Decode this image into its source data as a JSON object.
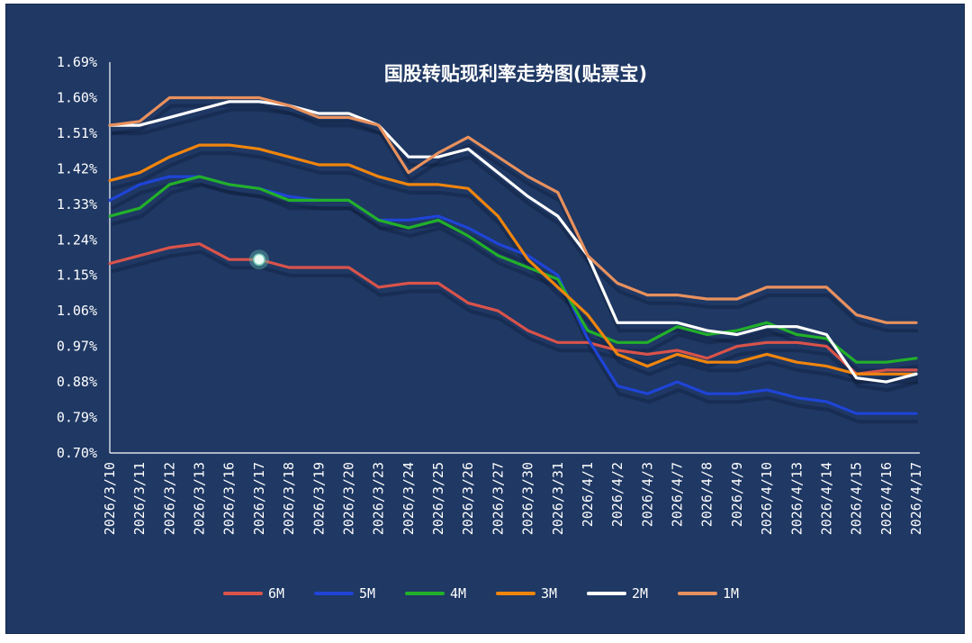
{
  "chart_data": {
    "type": "line",
    "title": "国股转贴现利率走势图(贴票宝)",
    "xlabel": "",
    "ylabel": "",
    "ylim": [
      0.7,
      1.69
    ],
    "yticks": [
      "0.70%",
      "0.79%",
      "0.88%",
      "0.97%",
      "1.06%",
      "1.15%",
      "1.24%",
      "1.33%",
      "1.42%",
      "1.51%",
      "1.60%",
      "1.69%"
    ],
    "ytick_values": [
      0.7,
      0.79,
      0.88,
      0.97,
      1.06,
      1.15,
      1.24,
      1.33,
      1.42,
      1.51,
      1.6,
      1.69
    ],
    "categories": [
      "2026/3/10",
      "2026/3/11",
      "2026/3/12",
      "2026/3/13",
      "2026/3/16",
      "2026/3/17",
      "2026/3/18",
      "2026/3/19",
      "2026/3/20",
      "2026/3/23",
      "2026/3/24",
      "2026/3/25",
      "2026/3/26",
      "2026/3/27",
      "2026/3/30",
      "2026/3/31",
      "2026/4/1",
      "2026/4/2",
      "2026/4/3",
      "2026/4/7",
      "2026/4/8",
      "2026/4/9",
      "2026/4/10",
      "2026/4/13",
      "2026/4/14",
      "2026/4/15",
      "2026/4/16",
      "2026/4/17"
    ],
    "legend_position": "bottom",
    "series": [
      {
        "name": "6M",
        "color": "#d9534a",
        "values": [
          1.18,
          1.2,
          1.22,
          1.23,
          1.19,
          1.19,
          1.17,
          1.17,
          1.17,
          1.12,
          1.13,
          1.13,
          1.08,
          1.06,
          1.01,
          0.98,
          0.98,
          0.96,
          0.95,
          0.96,
          0.94,
          0.97,
          0.98,
          0.98,
          0.97,
          0.9,
          0.91,
          0.91
        ]
      },
      {
        "name": "5M",
        "color": "#1f44d6",
        "values": [
          1.34,
          1.38,
          1.4,
          1.4,
          1.38,
          1.37,
          1.35,
          1.34,
          1.34,
          1.29,
          1.29,
          1.3,
          1.27,
          1.23,
          1.2,
          1.15,
          0.99,
          0.87,
          0.85,
          0.88,
          0.85,
          0.85,
          0.86,
          0.84,
          0.83,
          0.8,
          0.8,
          0.8
        ]
      },
      {
        "name": "4M",
        "color": "#22b02a",
        "values": [
          1.3,
          1.32,
          1.38,
          1.4,
          1.38,
          1.37,
          1.34,
          1.34,
          1.34,
          1.29,
          1.27,
          1.29,
          1.25,
          1.2,
          1.17,
          1.14,
          1.01,
          0.98,
          0.98,
          1.02,
          1.0,
          1.01,
          1.03,
          1.0,
          0.99,
          0.93,
          0.93,
          0.94
        ]
      },
      {
        "name": "3M",
        "color": "#f0850e",
        "values": [
          1.39,
          1.41,
          1.45,
          1.48,
          1.48,
          1.47,
          1.45,
          1.43,
          1.43,
          1.4,
          1.38,
          1.38,
          1.37,
          1.3,
          1.19,
          1.12,
          1.05,
          0.95,
          0.92,
          0.95,
          0.93,
          0.93,
          0.95,
          0.93,
          0.92,
          0.9,
          0.9,
          0.9
        ]
      },
      {
        "name": "2M",
        "color": "#ffffff",
        "values": [
          1.53,
          1.53,
          1.55,
          1.57,
          1.59,
          1.59,
          1.58,
          1.56,
          1.56,
          1.53,
          1.45,
          1.45,
          1.47,
          1.41,
          1.35,
          1.3,
          1.2,
          1.03,
          1.03,
          1.03,
          1.01,
          1.0,
          1.02,
          1.02,
          1.0,
          0.89,
          0.88,
          0.9
        ]
      },
      {
        "name": "1M",
        "color": "#e8915e",
        "values": [
          1.53,
          1.54,
          1.6,
          1.6,
          1.6,
          1.6,
          1.58,
          1.55,
          1.55,
          1.53,
          1.41,
          1.46,
          1.5,
          1.45,
          1.4,
          1.36,
          1.2,
          1.13,
          1.1,
          1.1,
          1.09,
          1.09,
          1.12,
          1.12,
          1.12,
          1.05,
          1.03,
          1.03
        ]
      }
    ],
    "highlight_point": {
      "series": "6M",
      "category": "2026/3/17",
      "value": 1.19
    }
  }
}
